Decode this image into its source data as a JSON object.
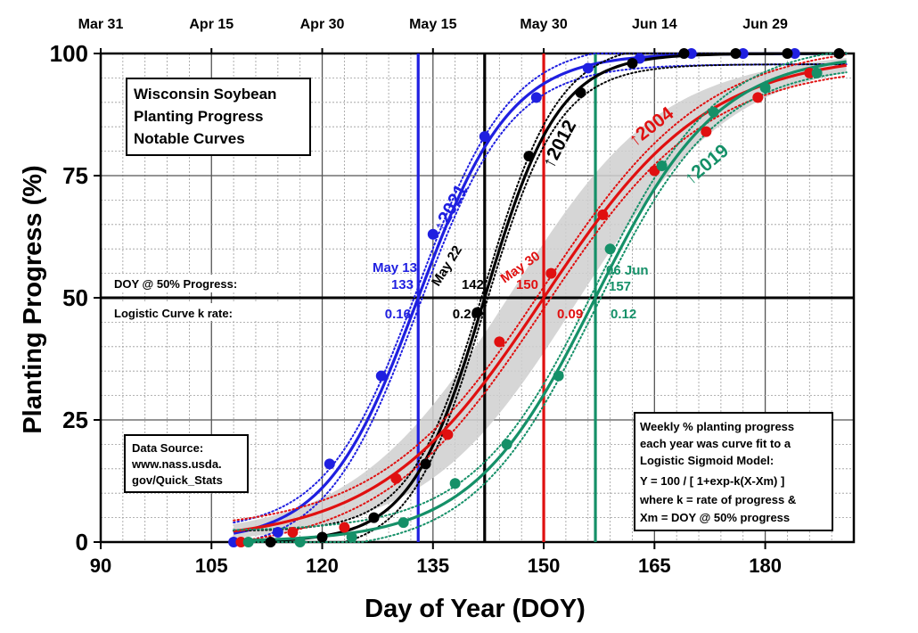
{
  "chart_data": {
    "type": "line",
    "xlabel": "Day of Year (DOY)",
    "ylabel": "Planting Progress (%)",
    "xlim": [
      90,
      192
    ],
    "ylim": [
      0,
      100
    ],
    "x_ticks": [
      90,
      105,
      120,
      135,
      150,
      165,
      180
    ],
    "y_ticks": [
      0,
      25,
      50,
      75,
      100
    ],
    "top_ticks": [
      {
        "doy": 90,
        "label": "Mar 31"
      },
      {
        "doy": 105,
        "label": "Apr 15"
      },
      {
        "doy": 120,
        "label": "Apr 30"
      },
      {
        "doy": 135,
        "label": "May 15"
      },
      {
        "doy": 150,
        "label": "May 30"
      },
      {
        "doy": 165,
        "label": "Jun 14"
      },
      {
        "doy": 180,
        "label": "Jun 29"
      }
    ],
    "grid": true,
    "title_box": [
      "Wisconsin Soybean",
      "Planting Progress",
      "Notable Curves"
    ],
    "source_box": [
      "Data Source:",
      "www.nass.usda.",
      "gov/Quick_Stats"
    ],
    "model_box": [
      "Weekly % planting progress",
      "each year was curve fit to a",
      "Logistic Sigmoid Model:",
      "Y = 100 / [ 1+exp-k(X-Xm) ]",
      "where k = rate of progress &",
      "Xm = DOY @ 50% progress"
    ],
    "row_labels": {
      "doy50": "DOY @ 50% Progress:",
      "krate": "Logistic Curve k rate:"
    },
    "series": [
      {
        "name": "2021",
        "color": "#1f1fe0",
        "xm": 133,
        "k": 0.16,
        "date_label": "May 13",
        "doy_label": "133",
        "k_label": "0.16",
        "points": [
          [
            108,
            0
          ],
          [
            114,
            2
          ],
          [
            121,
            16
          ],
          [
            128,
            34
          ],
          [
            135,
            63
          ],
          [
            142,
            83
          ],
          [
            149,
            91
          ],
          [
            156,
            97
          ],
          [
            163,
            99
          ],
          [
            170,
            100
          ],
          [
            177,
            100
          ],
          [
            184,
            100
          ]
        ]
      },
      {
        "name": "2012",
        "color": "#000000",
        "xm": 142,
        "k": 0.2,
        "date_label": "May 22",
        "doy_label": "142",
        "k_label": "0.20",
        "points": [
          [
            113,
            0
          ],
          [
            120,
            1
          ],
          [
            127,
            5
          ],
          [
            134,
            16
          ],
          [
            141,
            47
          ],
          [
            148,
            79
          ],
          [
            155,
            92
          ],
          [
            162,
            98
          ],
          [
            169,
            100
          ],
          [
            176,
            100
          ],
          [
            183,
            100
          ],
          [
            190,
            100
          ]
        ]
      },
      {
        "name": "2004",
        "color": "#e01010",
        "xm": 150,
        "k": 0.09,
        "date_label": "May 30",
        "doy_label": "150",
        "k_label": "0.09",
        "points": [
          [
            109,
            0
          ],
          [
            116,
            2
          ],
          [
            123,
            3
          ],
          [
            130,
            13
          ],
          [
            137,
            22
          ],
          [
            144,
            41
          ],
          [
            151,
            55
          ],
          [
            158,
            67
          ],
          [
            165,
            76
          ],
          [
            172,
            84
          ],
          [
            179,
            91
          ],
          [
            186,
            96
          ]
        ]
      },
      {
        "name": "2019",
        "color": "#159068",
        "xm": 157,
        "k": 0.12,
        "date_label": "06 Jun",
        "doy_label": "157",
        "k_label": "0.12",
        "points": [
          [
            110,
            0
          ],
          [
            117,
            0
          ],
          [
            124,
            1
          ],
          [
            131,
            4
          ],
          [
            138,
            12
          ],
          [
            145,
            20
          ],
          [
            152,
            34
          ],
          [
            159,
            60
          ],
          [
            166,
            77
          ],
          [
            173,
            88
          ],
          [
            180,
            93
          ],
          [
            187,
            96
          ]
        ]
      }
    ]
  }
}
